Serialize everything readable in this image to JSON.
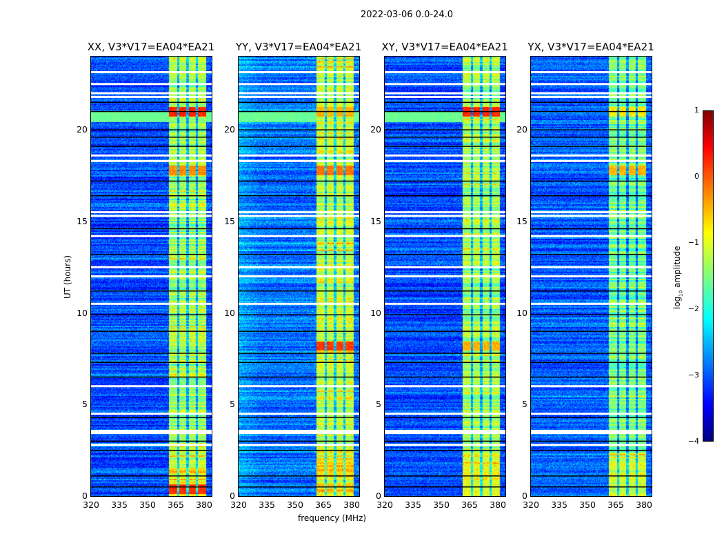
{
  "suptitle": "2022-03-06 0.0-24.0",
  "chart_data": {
    "type": "heatmap",
    "xlabel": "frequency (MHz)",
    "ylabel": "UT (hours)",
    "xlim": [
      320,
      384
    ],
    "ylim": [
      0,
      24
    ],
    "xticks": [
      "320",
      "335",
      "350",
      "365",
      "380"
    ],
    "yticks": [
      "0",
      "5",
      "10",
      "15",
      "20"
    ],
    "colorbar": {
      "label": "log10 amplitude",
      "label_main": "log",
      "label_sub": "10",
      "label_rest": " amplitude",
      "range": [
        -4,
        1
      ],
      "ticks": [
        "1",
        "0",
        "−1",
        "−2",
        "−3",
        "−4"
      ],
      "colormap": "jet"
    },
    "rfi_band_mhz": [
      361,
      381
    ],
    "subband_gaps_mhz": [
      366,
      371,
      376
    ],
    "flagged_hours_white": [
      23.15,
      22.5,
      22.0,
      21.8,
      18.6,
      18.3,
      15.5,
      15.3,
      14.2,
      12.5,
      12.0,
      10.5,
      6.0,
      4.5,
      3.5,
      2.8
    ],
    "gap_hours_black": [
      21.5,
      21.0,
      20.0,
      19.6,
      19.1,
      17.2,
      16.4,
      14.6,
      13.2,
      11.2,
      9.9,
      9.0,
      7.8,
      7.3,
      6.5,
      4.3,
      3.0,
      2.5,
      1.1,
      0.5
    ],
    "panels": [
      {
        "title": "XX, V3*V17=EA04*EA21",
        "background_log_amp": -3.0,
        "band_log_amp": -1.3,
        "bursts": [
          {
            "hour": 21.0,
            "log_amp": 0.2
          },
          {
            "hour": 17.8,
            "log_amp": -0.3
          },
          {
            "hour": 0.4,
            "log_amp": -0.2
          }
        ]
      },
      {
        "title": "YY, V3*V17=EA04*EA21",
        "background_log_amp": -2.8,
        "band_log_amp": -1.1,
        "bursts": [
          {
            "hour": 21.0,
            "log_amp": -0.5
          },
          {
            "hour": 17.8,
            "log_amp": -0.2
          },
          {
            "hour": 8.2,
            "log_amp": 0.1
          }
        ]
      },
      {
        "title": "XY, V3*V17=EA04*EA21",
        "background_log_amp": -3.0,
        "band_log_amp": -1.3,
        "bursts": [
          {
            "hour": 21.0,
            "log_amp": 0.2
          },
          {
            "hour": 8.2,
            "log_amp": -0.5
          }
        ]
      },
      {
        "title": "YX, V3*V17=EA04*EA21",
        "background_log_amp": -2.9,
        "band_log_amp": -1.5,
        "bursts": [
          {
            "hour": 21.0,
            "log_amp": -0.8
          },
          {
            "hour": 17.8,
            "log_amp": -0.5
          }
        ]
      }
    ]
  }
}
